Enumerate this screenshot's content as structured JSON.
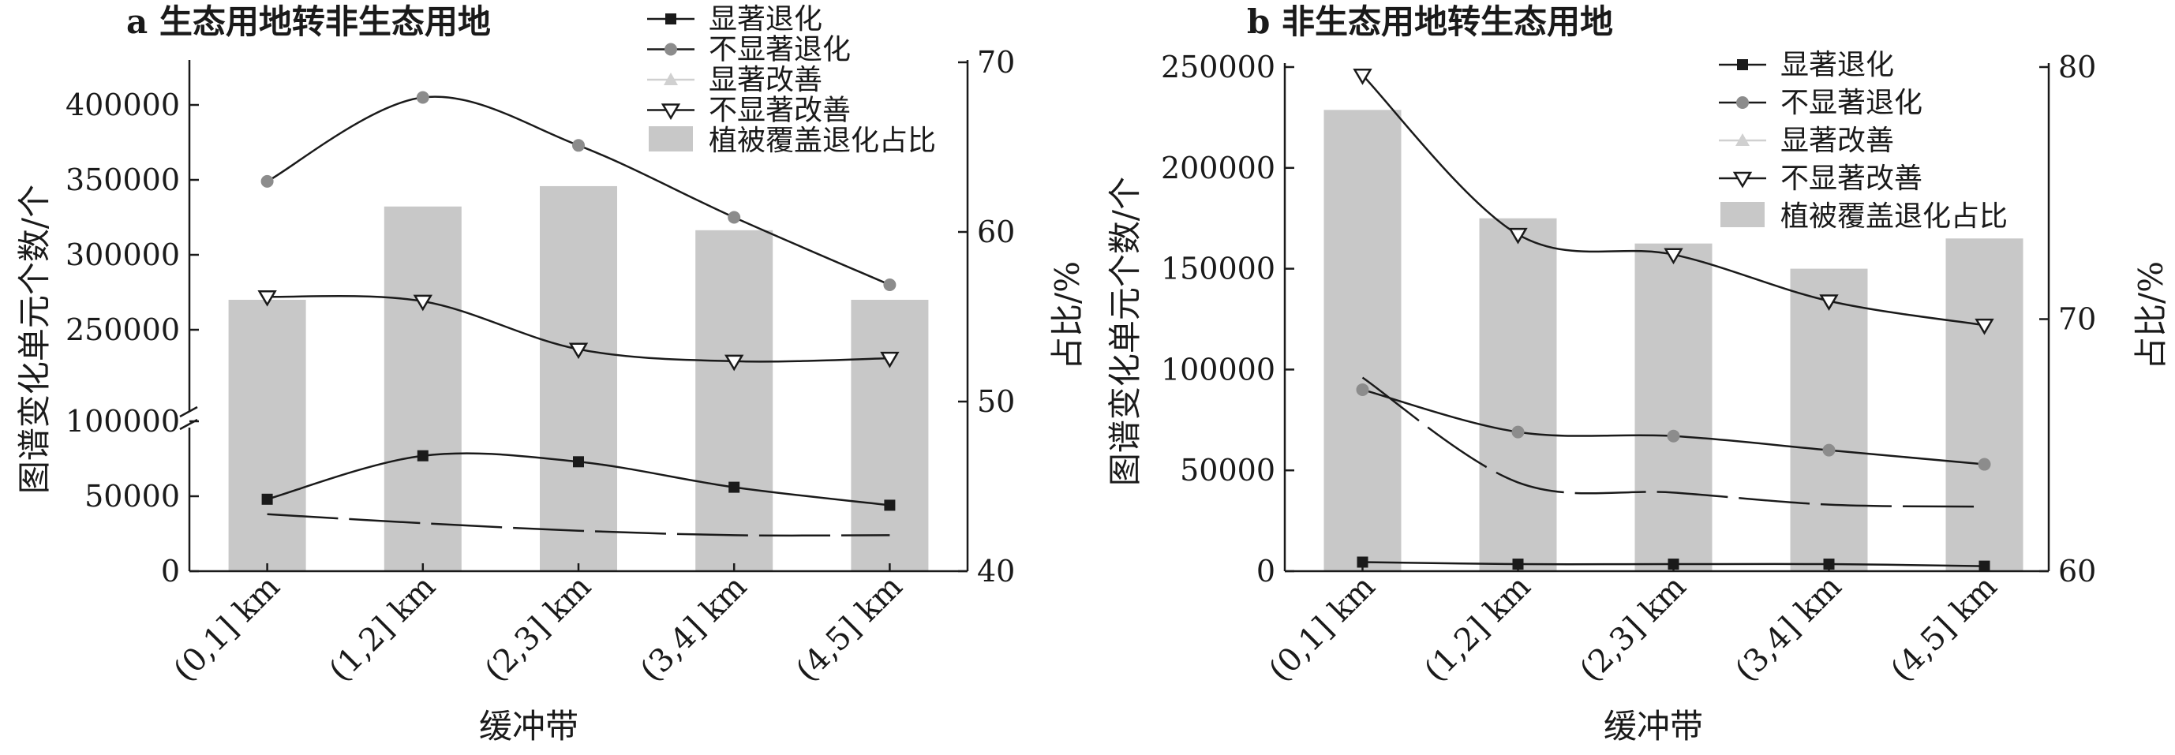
{
  "chart_data": [
    {
      "type": "bar",
      "title": "a 生态用地转非生态用地",
      "xlabel": "缓冲带",
      "ylabel": "图谱变化单元个数/个",
      "ylabel_right": "占比/%",
      "categories": [
        "(0,1] km",
        "(1,2] km",
        "(2,3] km",
        "(3,4] km",
        "(4,5] km"
      ],
      "y_axis_break": true,
      "y_ticks": [
        "0",
        "50000",
        "100000",
        "250000",
        "300000",
        "350000",
        "400000"
      ],
      "y2_ticks": [
        "40",
        "50",
        "60",
        "70"
      ],
      "y2lim": [
        40,
        70
      ],
      "series": [
        {
          "name": "显著退化",
          "axis": "left",
          "kind": "line",
          "marker": "square",
          "values": [
            48000,
            77000,
            73000,
            56000,
            44000
          ]
        },
        {
          "name": "不显著退化",
          "axis": "left",
          "kind": "line",
          "marker": "circle",
          "values": [
            349000,
            405000,
            373000,
            325000,
            280000
          ]
        },
        {
          "name": "显著改善",
          "axis": "left",
          "kind": "line",
          "marker": "triangle",
          "values": [
            38000,
            32000,
            27000,
            24000,
            24000
          ]
        },
        {
          "name": "不显著改善",
          "axis": "left",
          "kind": "line",
          "marker": "triangle-down",
          "values": [
            272000,
            269000,
            237000,
            229000,
            231000
          ]
        },
        {
          "name": "植被覆盖退化占比",
          "axis": "right",
          "kind": "bar",
          "values": [
            56.0,
            61.5,
            62.7,
            60.1,
            56.0
          ]
        }
      ],
      "legend_position": "top-right"
    },
    {
      "type": "bar",
      "title": "b 非生态用地转生态用地",
      "xlabel": "缓冲带",
      "ylabel": "图谱变化单元个数/个",
      "ylabel_right": "占比/%",
      "categories": [
        "(0,1] km",
        "(1,2] km",
        "(2,3] km",
        "(3,4] km",
        "(4,5] km"
      ],
      "y_ticks": [
        "0",
        "50000",
        "100000",
        "150000",
        "200000",
        "250000"
      ],
      "ylim": [
        0,
        250000
      ],
      "y2_ticks": [
        "60",
        "70",
        "80"
      ],
      "y2lim": [
        60,
        80
      ],
      "series": [
        {
          "name": "显著退化",
          "axis": "left",
          "kind": "line",
          "marker": "square",
          "values": [
            4500,
            3500,
            3500,
            3500,
            2500
          ]
        },
        {
          "name": "不显著退化",
          "axis": "left",
          "kind": "line",
          "marker": "circle",
          "values": [
            90000,
            69000,
            67000,
            60000,
            53000
          ]
        },
        {
          "name": "显著改善",
          "axis": "left",
          "kind": "line",
          "marker": "triangle",
          "values": [
            96000,
            44000,
            39000,
            33000,
            32000
          ]
        },
        {
          "name": "不显著改善",
          "axis": "left",
          "kind": "line",
          "marker": "triangle-down",
          "values": [
            246000,
            167000,
            157000,
            134000,
            122000
          ]
        },
        {
          "name": "植被覆盖退化占比",
          "axis": "right",
          "kind": "bar",
          "values": [
            78.3,
            74.0,
            73.0,
            72.0,
            73.2
          ]
        }
      ],
      "legend_position": "top-right"
    }
  ]
}
